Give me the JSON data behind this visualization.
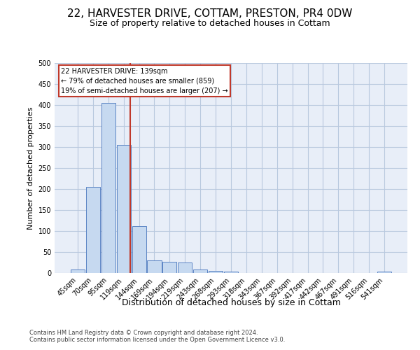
{
  "title": "22, HARVESTER DRIVE, COTTAM, PRESTON, PR4 0DW",
  "subtitle": "Size of property relative to detached houses in Cottam",
  "xlabel": "Distribution of detached houses by size in Cottam",
  "ylabel": "Number of detached properties",
  "footer_line1": "Contains HM Land Registry data © Crown copyright and database right 2024.",
  "footer_line2": "Contains public sector information licensed under the Open Government Licence v3.0.",
  "bar_labels": [
    "45sqm",
    "70sqm",
    "95sqm",
    "119sqm",
    "144sqm",
    "169sqm",
    "194sqm",
    "219sqm",
    "243sqm",
    "268sqm",
    "293sqm",
    "318sqm",
    "343sqm",
    "367sqm",
    "392sqm",
    "417sqm",
    "442sqm",
    "467sqm",
    "491sqm",
    "516sqm",
    "541sqm"
  ],
  "bar_values": [
    8,
    205,
    405,
    305,
    112,
    30,
    27,
    25,
    8,
    5,
    3,
    0,
    0,
    0,
    0,
    0,
    0,
    0,
    0,
    0,
    3
  ],
  "bar_color": "#c6d9f0",
  "bar_edge_color": "#5b84c4",
  "grid_color": "#b8c8de",
  "vline_x_index": 3.44,
  "vline_color": "#c0392b",
  "annotation_text": "22 HARVESTER DRIVE: 139sqm\n← 79% of detached houses are smaller (859)\n19% of semi-detached houses are larger (207) →",
  "annotation_box_color": "#ffffff",
  "annotation_box_edge": "#c0392b",
  "ylim": [
    0,
    500
  ],
  "yticks": [
    0,
    50,
    100,
    150,
    200,
    250,
    300,
    350,
    400,
    450,
    500
  ],
  "bg_color": "#e8eef8",
  "title_fontsize": 11,
  "subtitle_fontsize": 9,
  "ylabel_fontsize": 8,
  "xlabel_fontsize": 9,
  "tick_fontsize": 7,
  "annot_fontsize": 7,
  "footer_fontsize": 6
}
